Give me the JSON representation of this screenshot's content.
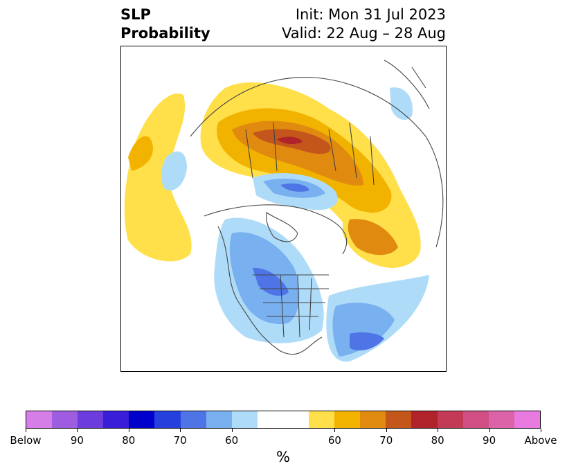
{
  "title": {
    "left_line1": "SLP",
    "left_line2": "Probability",
    "right_line1": "Init: Mon 31 Jul 2023",
    "right_line2": "Valid: 22 Aug – 28 Aug"
  },
  "colorbar": {
    "colors": [
      "#d67ee8",
      "#9e5ce0",
      "#6d3cdc",
      "#3a1dd8",
      "#0000cc",
      "#2540dc",
      "#4e74e6",
      "#78b0f0",
      "#aedcf8",
      "#ffffff",
      "#ffffff",
      "#ffe04a",
      "#f2b300",
      "#e08a10",
      "#c4561c",
      "#b0232a",
      "#c23a56",
      "#d04e84",
      "#dd63a8",
      "#e87ae0"
    ],
    "tick_labels": [
      "Below",
      "90",
      "80",
      "70",
      "60",
      "60",
      "70",
      "80",
      "90",
      "Above"
    ],
    "unit_label": "%"
  },
  "legend_colors": {
    "below_light": "#aedcf8",
    "below_mid": "#78b0f0",
    "below_strong": "#4e74e6",
    "above_light": "#ffe04a",
    "above_mid": "#f2b300",
    "above_strong": "#e08a10",
    "above_heavy": "#c4561c",
    "above_max": "#b0232a"
  }
}
